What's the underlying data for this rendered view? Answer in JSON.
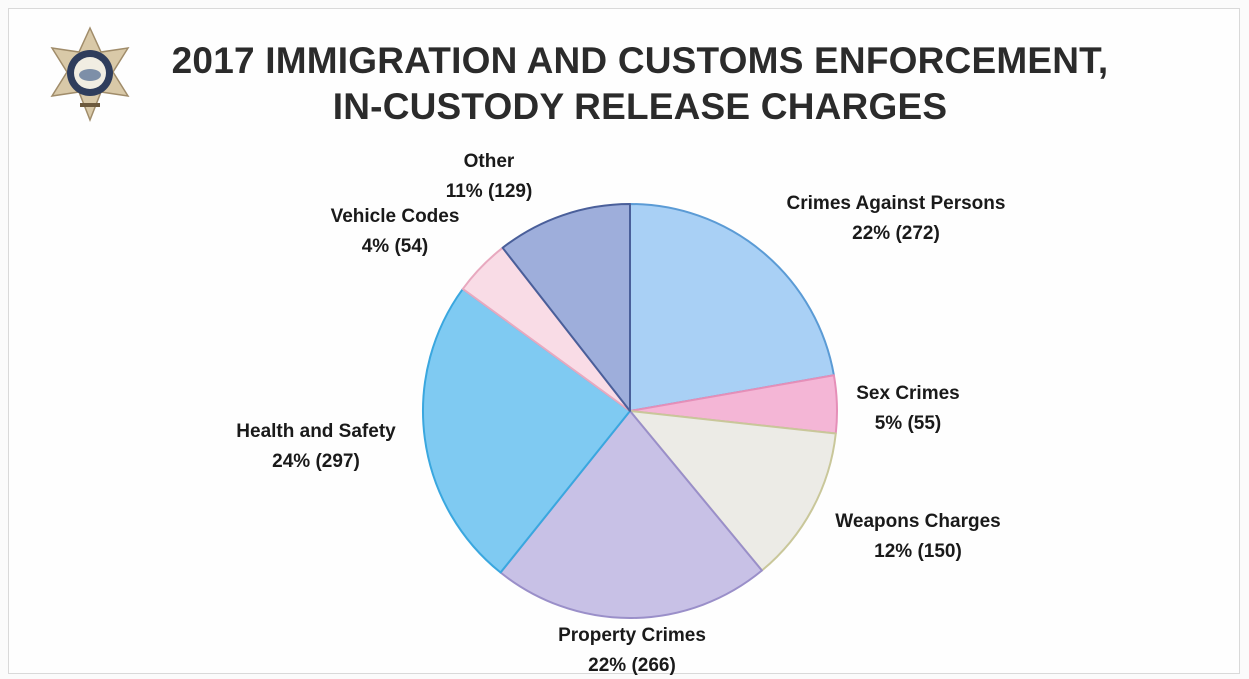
{
  "title_line_1": "2017 IMMIGRATION AND CUSTOMS ENFORCEMENT,",
  "title_line_2": "IN-CUSTODY RELEASE CHARGES",
  "colors": {
    "crimes_against_persons": "#a9d0f5",
    "sex_crimes": "#f4b6d6",
    "weapons_charges": "#ecebe6",
    "property_crimes": "#c8c1e6",
    "health_and_safety": "#7fcaf2",
    "vehicle_codes": "#f9dce6",
    "other": "#9eaedb",
    "outline": "#6b8fb8"
  },
  "chart_data": {
    "type": "pie",
    "title": "2017 IMMIGRATION AND CUSTOMS ENFORCEMENT, IN-CUSTODY RELEASE CHARGES",
    "slices": [
      {
        "label": "Crimes Against Persons",
        "value": 272,
        "percent_label": "22% (272)"
      },
      {
        "label": "Sex Crimes",
        "value": 55,
        "percent_label": "5% (55)"
      },
      {
        "label": "Weapons Charges",
        "value": 150,
        "percent_label": "12% (150)"
      },
      {
        "label": "Property Crimes",
        "value": 266,
        "percent_label": "22% (266)"
      },
      {
        "label": "Health and Safety",
        "value": 297,
        "percent_label": "24% (297)"
      },
      {
        "label": "Vehicle Codes",
        "value": 54,
        "percent_label": "4% (54)"
      },
      {
        "label": "Other",
        "value": 129,
        "percent_label": "11% (129)"
      }
    ],
    "start_angle": "12 o'clock",
    "direction": "clockwise"
  }
}
